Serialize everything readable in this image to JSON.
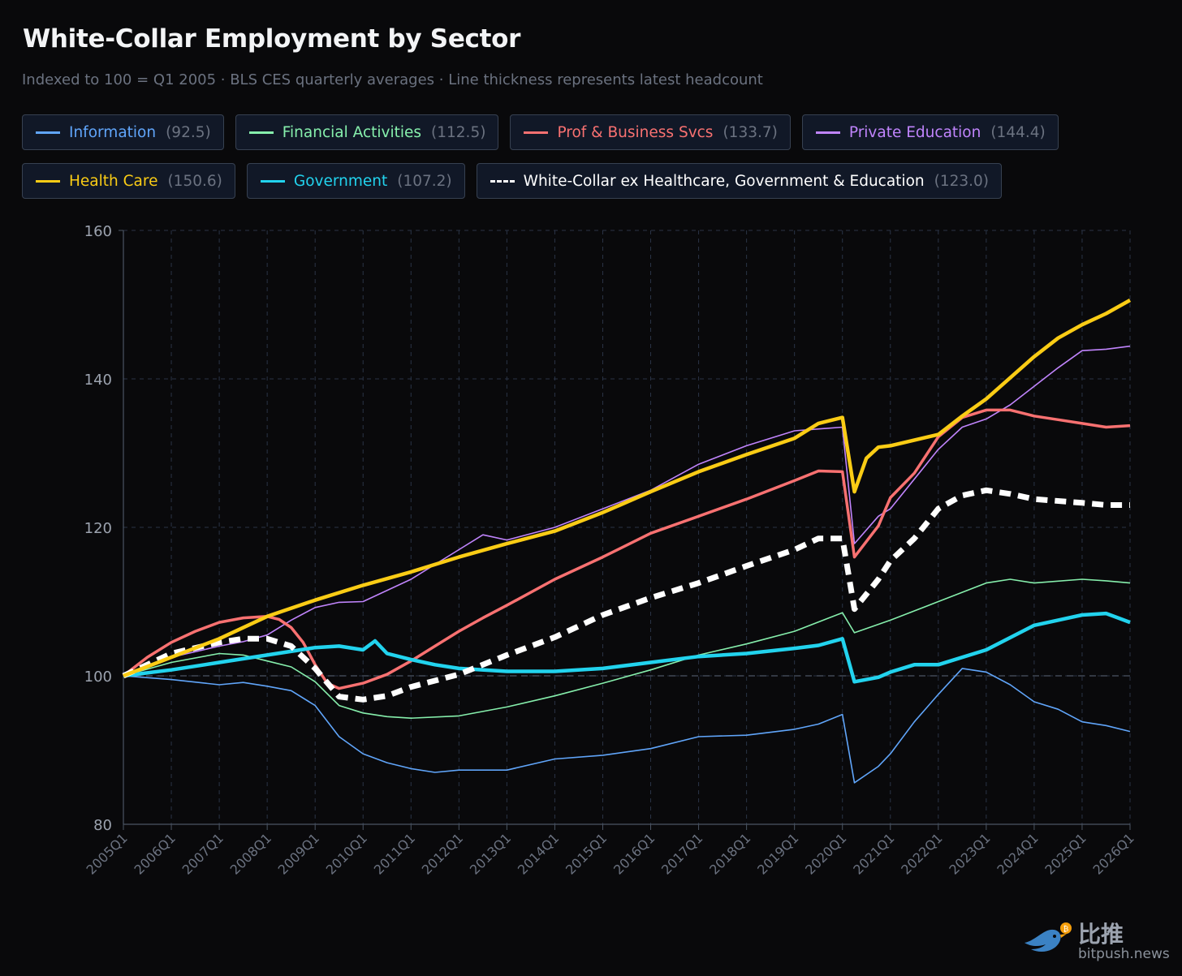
{
  "title": "White-Collar Employment by Sector",
  "subtitle": "Indexed to 100 = Q1 2005 · BLS CES quarterly averages · Line thickness represents latest headcount",
  "watermark": {
    "cn": "比推",
    "en": "bitpush.news"
  },
  "legend": [
    {
      "label": "Information",
      "value": "(92.5)",
      "color": "#60a5fa"
    },
    {
      "label": "Financial Activities",
      "value": "(112.5)",
      "color": "#86efac"
    },
    {
      "label": "Prof & Business Svcs",
      "value": "(133.7)",
      "color": "#f87171"
    },
    {
      "label": "Private Education",
      "value": "(144.4)",
      "color": "#c084fc"
    },
    {
      "label": "Health Care",
      "value": "(150.6)",
      "color": "#facc15"
    },
    {
      "label": "Government",
      "value": "(107.2)",
      "color": "#22d3ee"
    },
    {
      "label": "White-Collar ex Healthcare, Government & Education",
      "value": "(123.0)",
      "color": "#ffffff"
    }
  ],
  "chart_data": {
    "type": "line",
    "title": "White-Collar Employment by Sector",
    "xlabel": "",
    "ylabel": "",
    "ylim": [
      80,
      160
    ],
    "yticks": [
      80,
      100,
      120,
      140,
      160
    ],
    "x_start": "2005Q1",
    "x_end": "2026Q1",
    "xticks": [
      "2005Q1",
      "2006Q1",
      "2007Q1",
      "2008Q1",
      "2009Q1",
      "2010Q1",
      "2011Q1",
      "2012Q1",
      "2013Q1",
      "2014Q1",
      "2015Q1",
      "2016Q1",
      "2017Q1",
      "2018Q1",
      "2019Q1",
      "2020Q1",
      "2021Q1",
      "2022Q1",
      "2023Q1",
      "2024Q1",
      "2025Q1",
      "2026Q1"
    ],
    "grid": true,
    "reference_line": 100,
    "series": [
      {
        "name": "Information",
        "color": "#60a5fa",
        "weight": "thin",
        "points": [
          [
            "2005Q1",
            100
          ],
          [
            "2006Q1",
            99.5
          ],
          [
            "2007Q1",
            98.8
          ],
          [
            "2007Q3",
            99.1
          ],
          [
            "2008Q1",
            98.6
          ],
          [
            "2008Q3",
            98.0
          ],
          [
            "2009Q1",
            96.0
          ],
          [
            "2009Q3",
            91.8
          ],
          [
            "2010Q1",
            89.5
          ],
          [
            "2010Q3",
            88.3
          ],
          [
            "2011Q1",
            87.5
          ],
          [
            "2011Q3",
            87.0
          ],
          [
            "2012Q1",
            87.3
          ],
          [
            "2013Q1",
            87.3
          ],
          [
            "2014Q1",
            88.8
          ],
          [
            "2015Q1",
            89.3
          ],
          [
            "2016Q1",
            90.2
          ],
          [
            "2017Q1",
            91.8
          ],
          [
            "2018Q1",
            92.0
          ],
          [
            "2019Q1",
            92.8
          ],
          [
            "2019Q3",
            93.5
          ],
          [
            "2020Q1",
            94.8
          ],
          [
            "2020Q2",
            85.6
          ],
          [
            "2020Q4",
            87.8
          ],
          [
            "2021Q1",
            89.5
          ],
          [
            "2021Q3",
            93.8
          ],
          [
            "2022Q1",
            97.5
          ],
          [
            "2022Q3",
            101.0
          ],
          [
            "2023Q1",
            100.5
          ],
          [
            "2023Q3",
            98.8
          ],
          [
            "2024Q1",
            96.5
          ],
          [
            "2024Q3",
            95.5
          ],
          [
            "2025Q1",
            93.8
          ],
          [
            "2025Q3",
            93.3
          ],
          [
            "2026Q1",
            92.5
          ]
        ]
      },
      {
        "name": "Financial Activities",
        "color": "#86efac",
        "weight": "thin",
        "points": [
          [
            "2005Q1",
            100
          ],
          [
            "2006Q1",
            101.8
          ],
          [
            "2007Q1",
            103.0
          ],
          [
            "2007Q3",
            102.8
          ],
          [
            "2008Q1",
            102.0
          ],
          [
            "2008Q3",
            101.2
          ],
          [
            "2009Q1",
            99.2
          ],
          [
            "2009Q3",
            96.0
          ],
          [
            "2010Q1",
            95.0
          ],
          [
            "2010Q3",
            94.5
          ],
          [
            "2011Q1",
            94.3
          ],
          [
            "2012Q1",
            94.6
          ],
          [
            "2013Q1",
            95.8
          ],
          [
            "2014Q1",
            97.3
          ],
          [
            "2015Q1",
            99.0
          ],
          [
            "2016Q1",
            100.8
          ],
          [
            "2017Q1",
            102.8
          ],
          [
            "2018Q1",
            104.3
          ],
          [
            "2019Q1",
            106.0
          ],
          [
            "2020Q1",
            108.5
          ],
          [
            "2020Q2",
            105.8
          ],
          [
            "2021Q1",
            107.5
          ],
          [
            "2022Q1",
            110.0
          ],
          [
            "2023Q1",
            112.5
          ],
          [
            "2023Q3",
            113.0
          ],
          [
            "2024Q1",
            112.5
          ],
          [
            "2025Q1",
            113.0
          ],
          [
            "2025Q3",
            112.8
          ],
          [
            "2026Q1",
            112.5
          ]
        ]
      },
      {
        "name": "Prof & Business Svcs",
        "color": "#f87171",
        "weight": "medium",
        "points": [
          [
            "2005Q1",
            100
          ],
          [
            "2005Q3",
            102.5
          ],
          [
            "2006Q1",
            104.5
          ],
          [
            "2006Q3",
            106.0
          ],
          [
            "2007Q1",
            107.2
          ],
          [
            "2007Q3",
            107.8
          ],
          [
            "2008Q1",
            108.0
          ],
          [
            "2008Q2",
            107.6
          ],
          [
            "2008Q3",
            106.5
          ],
          [
            "2008Q4",
            104.5
          ],
          [
            "2009Q1",
            101.5
          ],
          [
            "2009Q2",
            99.0
          ],
          [
            "2009Q3",
            98.3
          ],
          [
            "2010Q1",
            99.0
          ],
          [
            "2010Q3",
            100.2
          ],
          [
            "2011Q1",
            102.0
          ],
          [
            "2011Q3",
            104.0
          ],
          [
            "2012Q1",
            106.0
          ],
          [
            "2012Q3",
            107.8
          ],
          [
            "2013Q1",
            109.5
          ],
          [
            "2014Q1",
            113.0
          ],
          [
            "2015Q1",
            116.0
          ],
          [
            "2016Q1",
            119.2
          ],
          [
            "2017Q1",
            121.5
          ],
          [
            "2018Q1",
            123.8
          ],
          [
            "2019Q1",
            126.3
          ],
          [
            "2019Q3",
            127.6
          ],
          [
            "2020Q1",
            127.5
          ],
          [
            "2020Q2",
            116.0
          ],
          [
            "2020Q4",
            120.2
          ],
          [
            "2021Q1",
            124.0
          ],
          [
            "2021Q3",
            127.3
          ],
          [
            "2022Q1",
            132.2
          ],
          [
            "2022Q3",
            134.8
          ],
          [
            "2023Q1",
            135.8
          ],
          [
            "2023Q3",
            135.8
          ],
          [
            "2024Q1",
            135.0
          ],
          [
            "2024Q3",
            134.5
          ],
          [
            "2025Q1",
            134.0
          ],
          [
            "2025Q3",
            133.5
          ],
          [
            "2026Q1",
            133.7
          ]
        ]
      },
      {
        "name": "Private Education",
        "color": "#c084fc",
        "weight": "thin",
        "points": [
          [
            "2005Q1",
            100
          ],
          [
            "2006Q1",
            102.5
          ],
          [
            "2007Q1",
            104.0
          ],
          [
            "2007Q3",
            104.6
          ],
          [
            "2008Q1",
            105.5
          ],
          [
            "2008Q3",
            107.5
          ],
          [
            "2009Q1",
            109.2
          ],
          [
            "2009Q3",
            109.9
          ],
          [
            "2010Q1",
            110.0
          ],
          [
            "2011Q1",
            113.0
          ],
          [
            "2012Q1",
            117.0
          ],
          [
            "2012Q3",
            119.0
          ],
          [
            "2013Q1",
            118.3
          ],
          [
            "2014Q1",
            120.0
          ],
          [
            "2015Q1",
            122.5
          ],
          [
            "2016Q1",
            125.0
          ],
          [
            "2017Q1",
            128.5
          ],
          [
            "2018Q1",
            131.0
          ],
          [
            "2019Q1",
            133.0
          ],
          [
            "2020Q1",
            133.5
          ],
          [
            "2020Q2",
            117.8
          ],
          [
            "2020Q4",
            121.5
          ],
          [
            "2021Q1",
            122.5
          ],
          [
            "2022Q1",
            130.5
          ],
          [
            "2022Q3",
            133.5
          ],
          [
            "2023Q1",
            134.6
          ],
          [
            "2023Q3",
            136.5
          ],
          [
            "2024Q1",
            139.0
          ],
          [
            "2024Q3",
            141.5
          ],
          [
            "2025Q1",
            143.8
          ],
          [
            "2025Q3",
            144.0
          ],
          [
            "2026Q1",
            144.4
          ]
        ]
      },
      {
        "name": "Health Care",
        "color": "#facc15",
        "weight": "thick",
        "points": [
          [
            "2005Q1",
            100
          ],
          [
            "2006Q1",
            102.5
          ],
          [
            "2007Q1",
            105.0
          ],
          [
            "2008Q1",
            108.0
          ],
          [
            "2009Q1",
            110.2
          ],
          [
            "2010Q1",
            112.2
          ],
          [
            "2011Q1",
            114.0
          ],
          [
            "2012Q1",
            116.0
          ],
          [
            "2013Q1",
            117.8
          ],
          [
            "2014Q1",
            119.5
          ],
          [
            "2015Q1",
            122.0
          ],
          [
            "2016Q1",
            124.8
          ],
          [
            "2017Q1",
            127.5
          ],
          [
            "2018Q1",
            129.8
          ],
          [
            "2019Q1",
            132.0
          ],
          [
            "2019Q3",
            134.0
          ],
          [
            "2020Q1",
            134.8
          ],
          [
            "2020Q2",
            124.8
          ],
          [
            "2020Q3",
            129.3
          ],
          [
            "2020Q4",
            130.8
          ],
          [
            "2021Q1",
            131.0
          ],
          [
            "2022Q1",
            132.5
          ],
          [
            "2022Q3",
            135.0
          ],
          [
            "2023Q1",
            137.3
          ],
          [
            "2024Q1",
            143.0
          ],
          [
            "2024Q3",
            145.5
          ],
          [
            "2025Q1",
            147.3
          ],
          [
            "2025Q3",
            148.8
          ],
          [
            "2026Q1",
            150.6
          ]
        ]
      },
      {
        "name": "Government",
        "color": "#22d3ee",
        "weight": "thick",
        "points": [
          [
            "2005Q1",
            100
          ],
          [
            "2006Q1",
            100.8
          ],
          [
            "2007Q1",
            101.8
          ],
          [
            "2008Q1",
            102.8
          ],
          [
            "2009Q1",
            103.8
          ],
          [
            "2009Q3",
            104.0
          ],
          [
            "2010Q1",
            103.5
          ],
          [
            "2010Q2",
            104.7
          ],
          [
            "2010Q3",
            103.0
          ],
          [
            "2011Q1",
            102.2
          ],
          [
            "2011Q3",
            101.5
          ],
          [
            "2012Q1",
            101.0
          ],
          [
            "2013Q1",
            100.6
          ],
          [
            "2014Q1",
            100.6
          ],
          [
            "2015Q1",
            101.0
          ],
          [
            "2016Q1",
            101.8
          ],
          [
            "2017Q1",
            102.6
          ],
          [
            "2018Q1",
            103.0
          ],
          [
            "2019Q1",
            103.7
          ],
          [
            "2019Q3",
            104.1
          ],
          [
            "2020Q1",
            105.0
          ],
          [
            "2020Q2",
            99.2
          ],
          [
            "2020Q4",
            99.8
          ],
          [
            "2021Q1",
            100.5
          ],
          [
            "2021Q3",
            101.5
          ],
          [
            "2022Q1",
            101.5
          ],
          [
            "2023Q1",
            103.5
          ],
          [
            "2024Q1",
            106.8
          ],
          [
            "2024Q3",
            107.5
          ],
          [
            "2025Q1",
            108.2
          ],
          [
            "2025Q3",
            108.4
          ],
          [
            "2026Q1",
            107.2
          ]
        ]
      },
      {
        "name": "White-Collar ex Healthcare, Government & Education",
        "color": "#ffffff",
        "weight": "dashed",
        "points": [
          [
            "2005Q1",
            100
          ],
          [
            "2006Q1",
            103.0
          ],
          [
            "2007Q1",
            104.5
          ],
          [
            "2007Q3",
            105.0
          ],
          [
            "2008Q1",
            105.0
          ],
          [
            "2008Q3",
            104.0
          ],
          [
            "2009Q1",
            101.0
          ],
          [
            "2009Q3",
            97.2
          ],
          [
            "2010Q1",
            96.8
          ],
          [
            "2010Q3",
            97.3
          ],
          [
            "2011Q1",
            98.5
          ],
          [
            "2012Q1",
            100.2
          ],
          [
            "2013Q1",
            102.8
          ],
          [
            "2014Q1",
            105.2
          ],
          [
            "2015Q1",
            108.2
          ],
          [
            "2016Q1",
            110.5
          ],
          [
            "2017Q1",
            112.5
          ],
          [
            "2018Q1",
            114.8
          ],
          [
            "2019Q1",
            117.0
          ],
          [
            "2019Q3",
            118.5
          ],
          [
            "2020Q1",
            118.5
          ],
          [
            "2020Q2",
            109.0
          ],
          [
            "2020Q4",
            113.0
          ],
          [
            "2021Q1",
            115.5
          ],
          [
            "2021Q3",
            118.5
          ],
          [
            "2022Q1",
            122.5
          ],
          [
            "2022Q3",
            124.3
          ],
          [
            "2023Q1",
            125.0
          ],
          [
            "2023Q3",
            124.5
          ],
          [
            "2024Q1",
            123.8
          ],
          [
            "2025Q1",
            123.3
          ],
          [
            "2025Q3",
            123.0
          ],
          [
            "2026Q1",
            123.0
          ]
        ]
      }
    ]
  }
}
